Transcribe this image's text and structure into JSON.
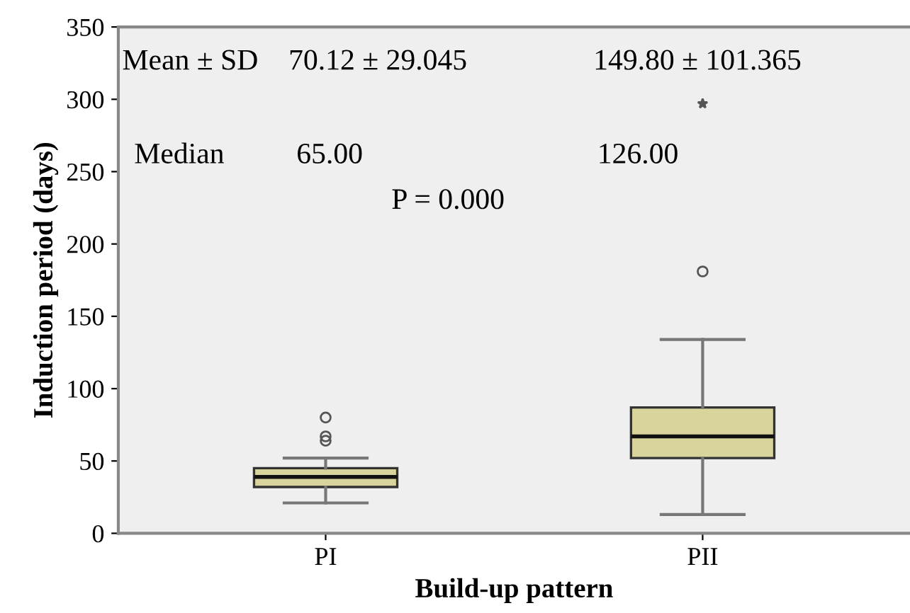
{
  "chart_data": {
    "type": "box",
    "xlabel": "Build-up pattern",
    "ylabel": "Induction period (days)",
    "categories": [
      "PI",
      "PII"
    ],
    "ylim": [
      0,
      350
    ],
    "yticks": [
      0,
      50,
      100,
      150,
      200,
      250,
      300,
      350
    ],
    "grid": false,
    "legend": false,
    "color": "#d8d49c",
    "boxes": [
      {
        "low": 21,
        "q1": 32,
        "median": 39,
        "q3": 45,
        "high": 52,
        "outliers": [
          80,
          67,
          64
        ]
      },
      {
        "low": 13,
        "q1": 52,
        "median": 67,
        "q3": 87,
        "high": 134,
        "outliers": [
          181
        ]
      }
    ],
    "series": [
      {
        "type": "scatter",
        "x": [
          "PII"
        ],
        "values": [
          297
        ],
        "marker": "star",
        "color": "#555555"
      }
    ],
    "annotations": [
      "Mean ± SD",
      "70.12 ± 29.045",
      "149.80 ± 101.365",
      "Median",
      "65.00",
      "126.00",
      "P = 0.000"
    ]
  }
}
